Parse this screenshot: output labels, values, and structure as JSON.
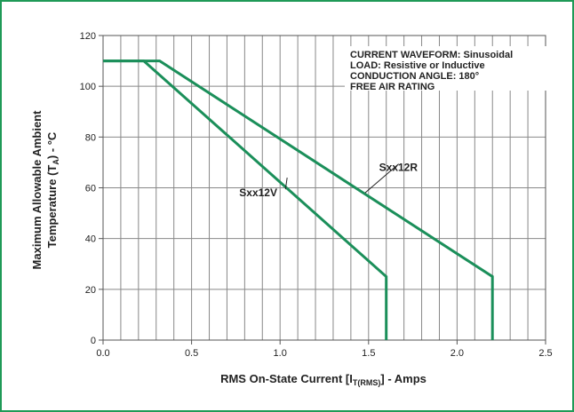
{
  "chart_data": {
    "type": "line",
    "xlim": [
      0,
      2.5
    ],
    "ylim": [
      0,
      120
    ],
    "grid": true,
    "x_ticks": [
      "0.0",
      "0.5",
      "1.0",
      "1.5",
      "2.0",
      "2.5"
    ],
    "y_ticks": [
      "0",
      "20",
      "40",
      "60",
      "80",
      "100",
      "120"
    ],
    "xlabel": "RMS On-State Current [I",
    "xlabel_sub": "T(RMS)",
    "xlabel_suffix": "] - Amps",
    "ylabel_line1": "Maximum Allowable Ambient",
    "ylabel_line2": "Temperature (T",
    "ylabel_sub": "A",
    "ylabel_suffix": ") - °C",
    "annotation": [
      "CURRENT WAVEFORM: Sinusoidal",
      "LOAD: Resistive or Inductive",
      "CONDUCTION ANGLE: 180°",
      "FREE AIR RATING"
    ],
    "series": [
      {
        "name": "Sxx12V",
        "color": "#1b8f5a",
        "x": [
          0.0,
          0.23,
          1.6,
          1.6
        ],
        "y": [
          110,
          110,
          25,
          0
        ],
        "label_at": [
          0.88,
          58
        ],
        "pointer_to": [
          1.04,
          64
        ]
      },
      {
        "name": "Sxx12R",
        "color": "#1b8f5a",
        "x": [
          0.0,
          0.32,
          2.2,
          2.2
        ],
        "y": [
          110,
          110,
          25,
          0
        ],
        "label_at": [
          1.67,
          68
        ],
        "pointer_to": [
          1.48,
          58
        ]
      }
    ]
  }
}
